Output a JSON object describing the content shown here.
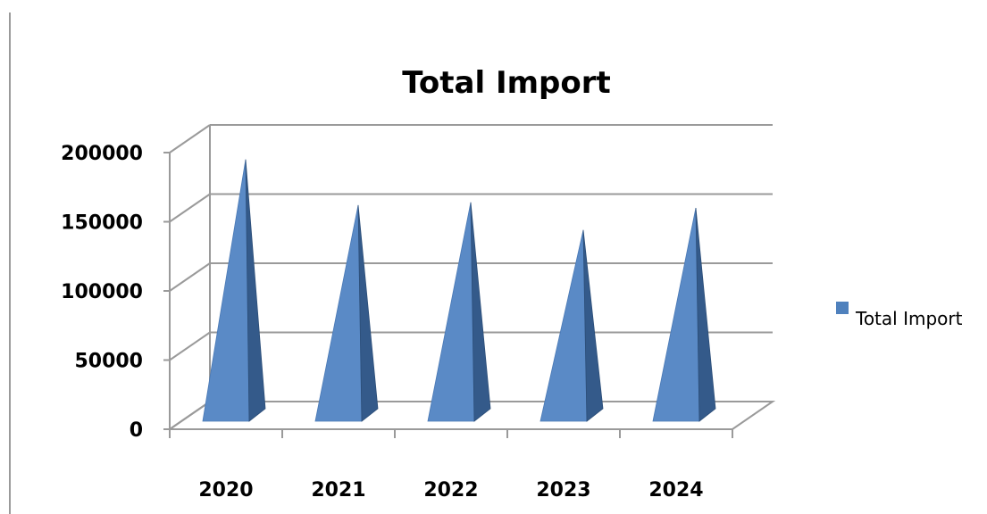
{
  "chart_data": {
    "type": "bar",
    "style": "3d-pyramid",
    "title": "Total Import",
    "categories": [
      "2020",
      "2021",
      "2022",
      "2023",
      "2024"
    ],
    "series": [
      {
        "name": "Total Import",
        "values": [
          185000,
          152000,
          154000,
          134000,
          150000
        ],
        "color": "#4F81BD"
      }
    ],
    "ylim": [
      0,
      200000
    ],
    "yticks": [
      "0",
      "50000",
      "100000",
      "150000",
      "200000"
    ],
    "grid": true,
    "legend": "right"
  }
}
